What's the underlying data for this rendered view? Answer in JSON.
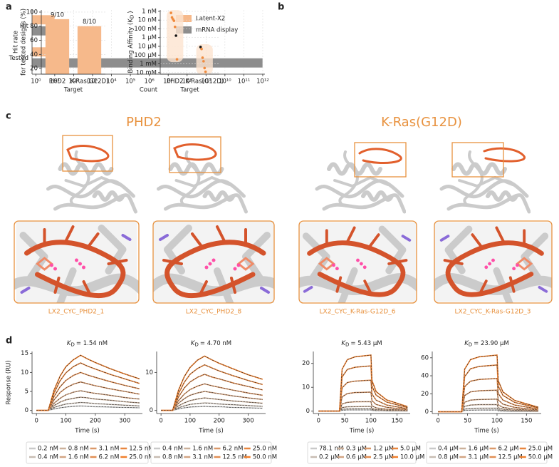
{
  "panel_labels": [
    "a",
    "b",
    "c",
    "d"
  ],
  "structures": {
    "headers": [
      "PHD2",
      "K-Ras(G12D)"
    ],
    "captions": [
      "LX2_CYC_PHD2_1",
      "LX2_CYC_PHD2_8",
      "LX2_CYC_K-Ras-G12D_6",
      "LX2_CYC_K-Ras-G12D_3"
    ]
  },
  "chart_data": [
    {
      "type": "bar",
      "orientation": "horizontal",
      "categories": [
        "Hit",
        "Tested"
      ],
      "series": [
        {
          "name": "Latent-X2",
          "color": "#f6b98b",
          "values": [
            10,
            10
          ]
        },
        {
          "name": "mRNA display",
          "color": "#8d8d8d",
          "values": [
            11,
            1000000000000
          ]
        }
      ],
      "xlabel": "Count",
      "xscale": "log",
      "xlim": [
        0.63,
        1300000000000
      ],
      "xticks": [
        {
          "value": 1,
          "label": "10⁰"
        },
        {
          "value": 10,
          "label": "10¹"
        },
        {
          "value": 100,
          "label": "10²"
        },
        {
          "value": 1000,
          "label": "10³"
        },
        {
          "value": 10000,
          "label": "10⁴"
        },
        {
          "value": 100000,
          "label": "10⁵"
        },
        {
          "value": 1000000,
          "label": "10⁶"
        },
        {
          "value": 10000000,
          "label": "10⁷"
        },
        {
          "value": 100000000,
          "label": "10⁸"
        },
        {
          "value": 1000000000,
          "label": "10⁹"
        },
        {
          "value": 10000000000,
          "label": "10¹⁰"
        },
        {
          "value": 100000000000,
          "label": "10¹¹"
        },
        {
          "value": 1000000000000,
          "label": "10¹²"
        }
      ],
      "grid": true,
      "legend": "upper right"
    },
    {
      "type": "bar",
      "categories": [
        "PHD2",
        "K-Ras(G12D)"
      ],
      "values": [
        90,
        80
      ],
      "value_labels": [
        "9/10",
        "8/10"
      ],
      "color": "#f6b98b",
      "ylabel": [
        "Hit rate",
        "for tested designs (%)"
      ],
      "xlabel": "Target",
      "ylim": [
        12,
        103
      ],
      "yticks": [
        20,
        40,
        60,
        80,
        100
      ],
      "grid": true
    },
    {
      "type": "strip",
      "categories": [
        "PHD2",
        "K-Ras(G12D)"
      ],
      "values": [
        [
          1.5,
          5,
          8,
          12,
          60,
          600,
          300000
        ],
        [
          12000,
          20000,
          200000,
          500000,
          3000000,
          8000000
        ]
      ],
      "point_colors": [
        [
          "#f08a3c",
          "#f08a3c",
          "#f08a3c",
          "#f08a3c",
          "#f08a3c",
          "#111111",
          "#f08a3c"
        ],
        [
          "#111111",
          "#f08a3c",
          "#f08a3c",
          "#f08a3c",
          "#f08a3c",
          "#f08a3c"
        ]
      ],
      "color": "#fde4d0",
      "ylabel": [
        {
          "text": "Binding Affinity (K"
        },
        {
          "text": "D",
          "sub": true
        },
        {
          "text": ")"
        }
      ],
      "xlabel": "Target",
      "yscale": "log",
      "yinvert": true,
      "ylim": [
        0.7,
        15000000
      ],
      "yticks": [
        {
          "value": 1,
          "label": "1 nM"
        },
        {
          "value": 10,
          "label": "10 nM"
        },
        {
          "value": 100,
          "label": "100 nM"
        },
        {
          "value": 1000,
          "label": "1 µM"
        },
        {
          "value": 10000,
          "label": "10 µM"
        },
        {
          "value": 100000,
          "label": "100 µM"
        },
        {
          "value": 1000000,
          "label": "1 mM"
        },
        {
          "value": 10000000,
          "label": "10 mM"
        }
      ],
      "grid": true
    },
    {
      "type": "line",
      "title": [
        {
          "text": "K",
          "italic": true
        },
        {
          "text": "D",
          "sub": true
        },
        {
          "text": "= 1.54 nM"
        }
      ],
      "x": [
        0,
        40,
        60,
        80,
        100,
        125,
        150,
        175,
        200,
        250,
        300,
        350
      ],
      "series": [
        {
          "name": "0.2 nM",
          "color": "#c9c9c9",
          "values": [
            0,
            0,
            0.4,
            0.7,
            0.9,
            1.1,
            1.2,
            1.1,
            1.0,
            0.9,
            0.8,
            0.7
          ]
        },
        {
          "name": "0.4 nM",
          "color": "#c7bcb2",
          "values": [
            0,
            0,
            0.8,
            1.3,
            1.7,
            1.9,
            2.1,
            2.0,
            1.8,
            1.6,
            1.4,
            1.2
          ]
        },
        {
          "name": "0.8 nM",
          "color": "#cbb09a",
          "values": [
            0,
            0,
            1.3,
            2.2,
            2.8,
            3.2,
            3.5,
            3.3,
            3.0,
            2.7,
            2.3,
            2.0
          ]
        },
        {
          "name": "1.6 nM",
          "color": "#d2a482",
          "values": [
            0,
            0,
            1.9,
            3.2,
            4.1,
            4.8,
            5.2,
            4.8,
            4.5,
            4.0,
            3.4,
            3.0
          ]
        },
        {
          "name": "3.1 nM",
          "color": "#da9869",
          "values": [
            0,
            0,
            2.8,
            4.7,
            5.9,
            6.9,
            7.5,
            7.0,
            6.5,
            5.7,
            5.0,
            4.3
          ]
        },
        {
          "name": "6.2 nM",
          "color": "#e18e53",
          "values": [
            0,
            0,
            3.7,
            6.2,
            7.9,
            9.2,
            10,
            9.3,
            8.7,
            7.6,
            6.6,
            5.7
          ]
        },
        {
          "name": "12.5 nM",
          "color": "#e8863f",
          "values": [
            0,
            0,
            4.6,
            7.8,
            9.9,
            11.5,
            12.5,
            11.6,
            10.9,
            9.5,
            8.3,
            7.1
          ]
        },
        {
          "name": "25.0 nM",
          "color": "#f07f2c",
          "values": [
            0,
            0,
            5.4,
            9.0,
            11.5,
            13.3,
            14.5,
            13.5,
            12.6,
            11.0,
            9.6,
            8.3
          ]
        }
      ],
      "xlabel": "Time (s)",
      "ylabel": "Response (RU)",
      "xlim": [
        -15,
        360
      ],
      "ylim": [
        -0.8,
        15.5
      ],
      "xticks": [
        0,
        100,
        200,
        300
      ],
      "yticks": [
        0,
        5,
        10,
        15
      ],
      "legend": "below"
    },
    {
      "type": "line",
      "title": [
        {
          "text": "K",
          "italic": true
        },
        {
          "text": "D",
          "sub": true
        },
        {
          "text": "= 4.70 nM"
        }
      ],
      "x": [
        0,
        40,
        60,
        80,
        100,
        125,
        150,
        175,
        200,
        250,
        300,
        350
      ],
      "series": [
        {
          "name": "0.4 nM",
          "color": "#c9c9c9",
          "values": [
            0,
            0,
            0.4,
            0.7,
            0.9,
            1.0,
            1.1,
            1.0,
            1.0,
            0.8,
            0.7,
            0.6
          ]
        },
        {
          "name": "0.8 nM",
          "color": "#c7bcb2",
          "values": [
            0,
            0,
            0.7,
            1.2,
            1.6,
            1.8,
            2.0,
            1.9,
            1.7,
            1.5,
            1.3,
            1.1
          ]
        },
        {
          "name": "1.6 nM",
          "color": "#cbb09a",
          "values": [
            0,
            0,
            1.2,
            2.0,
            2.6,
            3.0,
            3.3,
            3.1,
            2.9,
            2.5,
            2.2,
            1.9
          ]
        },
        {
          "name": "3.1 nM",
          "color": "#d2a482",
          "values": [
            0,
            0,
            1.9,
            3.1,
            4.0,
            4.6,
            5.0,
            4.7,
            4.4,
            3.8,
            3.3,
            2.9
          ]
        },
        {
          "name": "6.2 nM",
          "color": "#da9869",
          "values": [
            0,
            0,
            2.6,
            4.3,
            5.5,
            6.4,
            7.0,
            6.5,
            6.1,
            5.3,
            4.6,
            4.0
          ]
        },
        {
          "name": "12.5 nM",
          "color": "#e18e53",
          "values": [
            0,
            0,
            3.5,
            5.9,
            7.5,
            8.7,
            9.5,
            8.8,
            8.3,
            7.2,
            6.3,
            5.4
          ]
        },
        {
          "name": "25.0 nM",
          "color": "#e8863f",
          "values": [
            0,
            0,
            4.4,
            7.4,
            9.5,
            11.0,
            12.0,
            11.2,
            10.4,
            9.1,
            7.9,
            6.8
          ]
        },
        {
          "name": "50.0 nM",
          "color": "#f07f2c",
          "values": [
            0,
            0,
            5.3,
            8.9,
            11.3,
            13.2,
            14.3,
            13.3,
            12.4,
            10.9,
            9.4,
            8.2
          ]
        }
      ],
      "xlabel": "Time (s)",
      "xlim": [
        -15,
        360
      ],
      "ylim": [
        -0.8,
        15.5
      ],
      "xticks": [
        0,
        100,
        200,
        300
      ],
      "yticks": [
        0,
        10
      ],
      "legend": "below"
    },
    {
      "type": "line",
      "title": [
        {
          "text": "K",
          "italic": true
        },
        {
          "text": "D",
          "sub": true
        },
        {
          "text": "= 5.43 µM"
        }
      ],
      "x": [
        0,
        40,
        45,
        55,
        70,
        100,
        102,
        110,
        130,
        170
      ],
      "series": [
        {
          "name": "78.1 nM",
          "color": "#c9c9c9",
          "values": [
            0,
            0,
            0.4,
            0.5,
            0.5,
            0.5,
            0.3,
            0.2,
            0.1,
            0.0
          ]
        },
        {
          "name": "0.2 µM",
          "color": "#c7bcb2",
          "values": [
            0,
            0,
            0.8,
            0.9,
            1.0,
            1.0,
            0.6,
            0.4,
            0.2,
            0.1
          ]
        },
        {
          "name": "0.3 µM",
          "color": "#cbb09a",
          "values": [
            0,
            0,
            1.5,
            1.8,
            1.9,
            2.0,
            1.1,
            0.7,
            0.4,
            0.2
          ]
        },
        {
          "name": "0.6 µM",
          "color": "#d2a482",
          "values": [
            0,
            0,
            3.0,
            3.7,
            3.9,
            4.0,
            2.2,
            1.4,
            0.8,
            0.3
          ]
        },
        {
          "name": "1.2 µM",
          "color": "#da9869",
          "values": [
            0,
            0,
            6.0,
            7.4,
            7.8,
            8.0,
            4.4,
            2.8,
            1.6,
            0.6
          ]
        },
        {
          "name": "2.5 µM",
          "color": "#e18e53",
          "values": [
            0,
            0,
            9.8,
            12.0,
            12.6,
            13.0,
            7.2,
            4.6,
            2.6,
            1.0
          ]
        },
        {
          "name": "5.0 µM",
          "color": "#e8863f",
          "values": [
            0,
            0,
            14.3,
            17.5,
            18.4,
            19.0,
            10.5,
            6.7,
            3.8,
            1.5
          ]
        },
        {
          "name": "10.0 µM",
          "color": "#f07f2c",
          "values": [
            0,
            0,
            17.6,
            21.6,
            22.8,
            23.5,
            12.9,
            8.2,
            4.7,
            1.9
          ]
        }
      ],
      "xlabel": "Time (s)",
      "xlim": [
        -10,
        175
      ],
      "ylim": [
        -1,
        25
      ],
      "xticks": [
        0,
        50,
        100,
        150
      ],
      "yticks": [
        0,
        10,
        20
      ],
      "legend": "below"
    },
    {
      "type": "line",
      "title": [
        {
          "text": "K",
          "italic": true
        },
        {
          "text": "D",
          "sub": true
        },
        {
          "text": "= 23.90 µM"
        }
      ],
      "x": [
        0,
        40,
        45,
        55,
        70,
        100,
        102,
        110,
        130,
        170
      ],
      "series": [
        {
          "name": "0.4 µM",
          "color": "#c9c9c9",
          "values": [
            0,
            0,
            1.5,
            1.8,
            1.9,
            2.0,
            1.1,
            0.7,
            0.4,
            0.2
          ]
        },
        {
          "name": "0.8 µM",
          "color": "#c7bcb2",
          "values": [
            0,
            0,
            3.0,
            3.7,
            3.9,
            4.0,
            2.2,
            1.4,
            0.8,
            0.3
          ]
        },
        {
          "name": "1.6 µM",
          "color": "#cbb09a",
          "values": [
            0,
            0,
            6.0,
            7.4,
            7.8,
            8.0,
            4.4,
            2.8,
            1.6,
            0.6
          ]
        },
        {
          "name": "3.1 µM",
          "color": "#d2a482",
          "values": [
            0,
            0,
            10.5,
            12.9,
            13.6,
            14.0,
            7.7,
            4.9,
            2.8,
            1.1
          ]
        },
        {
          "name": "6.2 µM",
          "color": "#da9869",
          "values": [
            0,
            0,
            18.0,
            22.1,
            23.3,
            24.0,
            13.2,
            8.4,
            4.8,
            1.9
          ]
        },
        {
          "name": "12.5 µM",
          "color": "#e18e53",
          "values": [
            0,
            0,
            27.8,
            34.0,
            35.9,
            37.0,
            20.4,
            13.0,
            7.4,
            3.0
          ]
        },
        {
          "name": "25.0 µM",
          "color": "#e8863f",
          "values": [
            0,
            0,
            39.0,
            47.8,
            50.4,
            52.0,
            28.6,
            18.2,
            10.4,
            4.2
          ]
        },
        {
          "name": "50.0 µM",
          "color": "#f07f2c",
          "values": [
            0,
            0,
            47.3,
            58.0,
            61.1,
            63.0,
            34.7,
            22.1,
            12.6,
            5.0
          ]
        }
      ],
      "xlabel": "Time (s)",
      "xlim": [
        -10,
        175
      ],
      "ylim": [
        -2,
        67
      ],
      "xticks": [
        0,
        50,
        100,
        150
      ],
      "yticks": [
        0,
        20,
        40,
        60
      ],
      "legend": "below"
    }
  ]
}
